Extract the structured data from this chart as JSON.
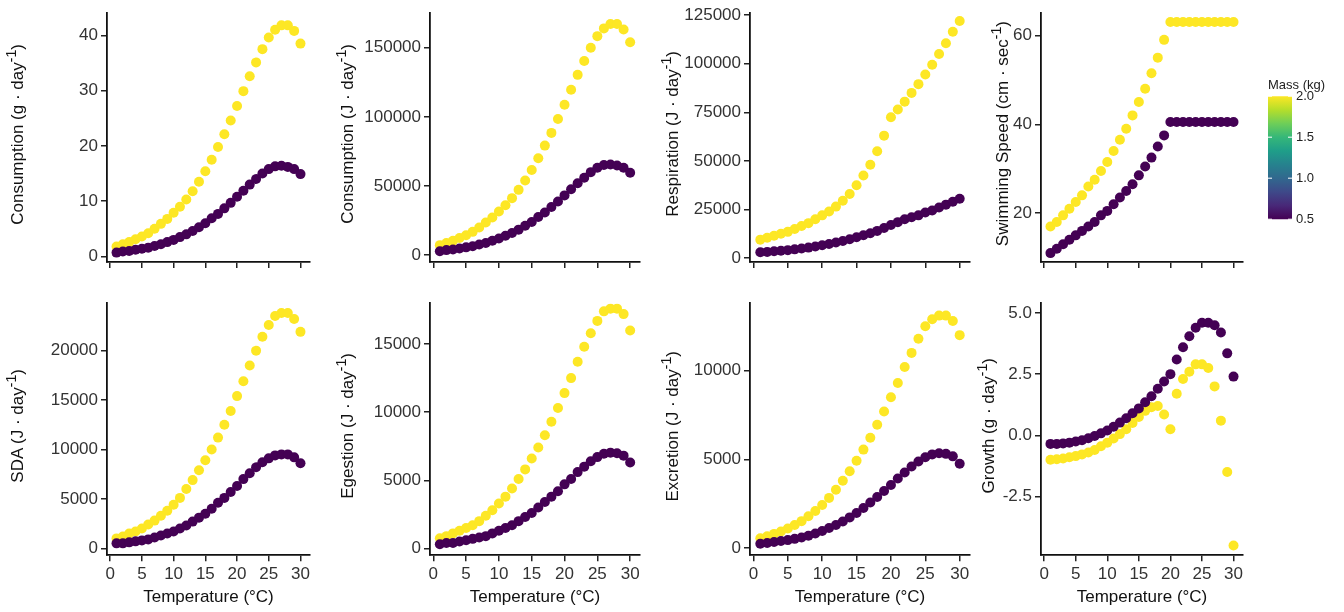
{
  "chart_data": [
    {
      "type": "scatter",
      "ylabel": "Consumption  (g · day$^{-1}$)",
      "marker": "circle",
      "grid": false,
      "tick_labels": "y",
      "xlim": [
        -0.5,
        31.5
      ],
      "xticks": [
        0,
        5,
        10,
        15,
        20,
        25,
        30
      ],
      "ylim": [
        -1,
        44
      ],
      "yticks": [
        0,
        10,
        20,
        30,
        40
      ],
      "x": [
        1,
        2,
        3,
        4,
        5,
        6,
        7,
        8,
        9,
        10,
        11,
        12,
        13,
        14,
        15,
        16,
        17,
        18,
        19,
        20,
        21,
        22,
        23,
        24,
        25,
        26,
        27,
        28,
        29,
        30
      ],
      "series": [
        {
          "color": "#440154",
          "values": [
            0.7,
            0.9,
            1.0,
            1.2,
            1.4,
            1.6,
            1.9,
            2.2,
            2.6,
            3.0,
            3.5,
            4.0,
            4.6,
            5.3,
            6.0,
            6.9,
            7.7,
            8.7,
            9.7,
            10.8,
            11.9,
            13.0,
            14.0,
            15.0,
            15.8,
            16.3,
            16.4,
            16.2,
            15.8,
            14.9
          ]
        },
        {
          "color": "#fde725",
          "values": [
            1.8,
            2.2,
            2.6,
            3.1,
            3.6,
            4.2,
            5.0,
            5.9,
            6.8,
            7.9,
            9.0,
            10.3,
            11.8,
            13.5,
            15.4,
            17.5,
            19.8,
            22.1,
            24.6,
            27.2,
            29.9,
            32.6,
            35.1,
            37.5,
            39.6,
            41.0,
            41.8,
            41.8,
            40.8,
            38.5
          ]
        }
      ]
    },
    {
      "type": "scatter",
      "ylabel": "Consumption  (J · day$^{-1}$)",
      "marker": "circle",
      "grid": false,
      "tick_labels": "y",
      "xlim": [
        -0.5,
        31.5
      ],
      "xticks": [
        0,
        5,
        10,
        15,
        20,
        25,
        30
      ],
      "ylim": [
        -5000,
        175000
      ],
      "yticks": [
        0,
        50000,
        100000,
        150000
      ],
      "x": [
        1,
        2,
        3,
        4,
        5,
        6,
        7,
        8,
        9,
        10,
        11,
        12,
        13,
        14,
        15,
        16,
        17,
        18,
        19,
        20,
        21,
        22,
        23,
        24,
        25,
        26,
        27,
        28,
        29,
        30
      ],
      "series": [
        {
          "color": "#440154",
          "values": [
            2800,
            3600,
            4000,
            4800,
            5600,
            6400,
            7600,
            8800,
            10400,
            12000,
            14000,
            16000,
            18400,
            21200,
            24000,
            27600,
            30800,
            34800,
            38800,
            43200,
            47600,
            52000,
            56000,
            60000,
            63200,
            65200,
            65600,
            64800,
            63200,
            59600
          ]
        },
        {
          "color": "#fde725",
          "values": [
            7200,
            8800,
            10400,
            12400,
            14400,
            16800,
            20000,
            23600,
            27200,
            31600,
            36000,
            41200,
            47200,
            54000,
            61600,
            70000,
            79200,
            88400,
            98400,
            108800,
            119600,
            130400,
            140400,
            150000,
            158400,
            164000,
            167200,
            167200,
            163200,
            154000
          ]
        }
      ]
    },
    {
      "type": "scatter",
      "ylabel": "Respiration  (J · day$^{-1}$)",
      "marker": "circle",
      "grid": false,
      "tick_labels": "y",
      "xlim": [
        -0.5,
        31.5
      ],
      "xticks": [
        0,
        5,
        10,
        15,
        20,
        25,
        30
      ],
      "ylim": [
        -2000,
        126000
      ],
      "yticks": [
        0,
        25000,
        50000,
        75000,
        100000,
        125000
      ],
      "x": [
        1,
        2,
        3,
        4,
        5,
        6,
        7,
        8,
        9,
        10,
        11,
        12,
        13,
        14,
        15,
        16,
        17,
        18,
        19,
        20,
        21,
        22,
        23,
        24,
        25,
        26,
        27,
        28,
        29,
        30
      ],
      "series": [
        {
          "color": "#440154",
          "values": [
            3000,
            3200,
            3500,
            3800,
            4100,
            4500,
            4900,
            5400,
            6000,
            6600,
            7300,
            8000,
            8800,
            9700,
            10700,
            11800,
            12800,
            14000,
            15500,
            17000,
            18500,
            20000,
            21000,
            22000,
            23500,
            24500,
            26000,
            27500,
            29000,
            30500
          ]
        },
        {
          "color": "#fde725",
          "values": [
            9500,
            10500,
            11500,
            12500,
            13500,
            15000,
            16500,
            18000,
            20000,
            22000,
            24000,
            26500,
            29500,
            33000,
            37500,
            42500,
            48000,
            55000,
            63000,
            72500,
            76500,
            80500,
            85000,
            89500,
            94500,
            99500,
            105000,
            110500,
            116500,
            122000
          ]
        }
      ]
    },
    {
      "type": "scatter",
      "ylabel": "Swimming Speed  (cm · sec$^{-1}$)",
      "clabel": "Mass (kg)",
      "clim": [
        0.5,
        2.0
      ],
      "cticks": [
        {
          "value": 0.5,
          "label": "0.5"
        },
        {
          "value": 1,
          "label": "1.0"
        },
        {
          "value": 1.5,
          "label": "1.5"
        },
        {
          "value": 2,
          "label": "2.0"
        }
      ],
      "marker": "circle",
      "grid": false,
      "tick_labels": "y",
      "xlim": [
        -0.5,
        31.5
      ],
      "xticks": [
        0,
        5,
        10,
        15,
        20,
        25,
        30
      ],
      "ylim": [
        9,
        65
      ],
      "yticks": [
        20,
        40,
        60
      ],
      "x": [
        1,
        2,
        3,
        4,
        5,
        6,
        7,
        8,
        9,
        10,
        11,
        12,
        13,
        14,
        15,
        16,
        17,
        18,
        19,
        20,
        21,
        22,
        23,
        24,
        25,
        26,
        27,
        28,
        29,
        30,
        1,
        2,
        3,
        4,
        5,
        6,
        7,
        8,
        9,
        10,
        11,
        12,
        13,
        14,
        15,
        16,
        17,
        18,
        19,
        20,
        21,
        22,
        23,
        24,
        25,
        26,
        27,
        28,
        29,
        30
      ],
      "values": [
        11,
        12,
        13,
        14,
        15,
        16,
        17,
        18,
        19.5,
        20.5,
        22,
        23.5,
        25,
        26.5,
        28.5,
        30.5,
        32.5,
        35,
        37.5,
        40.5,
        40.5,
        40.5,
        40.5,
        40.5,
        40.5,
        40.5,
        40.5,
        40.5,
        40.5,
        40.5,
        17,
        18,
        19.5,
        21,
        22.5,
        24,
        26,
        27.5,
        29.5,
        31.5,
        34,
        36.5,
        39,
        42,
        45,
        48,
        51.5,
        55,
        59,
        63,
        63,
        63,
        63,
        63,
        63,
        63,
        63,
        63,
        63,
        63
      ],
      "cvalues": [
        0.5,
        0.5,
        0.5,
        0.5,
        0.5,
        0.5,
        0.5,
        0.5,
        0.5,
        0.5,
        0.5,
        0.5,
        0.5,
        0.5,
        0.5,
        0.5,
        0.5,
        0.5,
        0.5,
        0.5,
        0.5,
        0.5,
        0.5,
        0.5,
        0.5,
        0.5,
        0.5,
        0.5,
        0.5,
        0.5,
        2.0,
        2.0,
        2.0,
        2.0,
        2.0,
        2.0,
        2.0,
        2.0,
        2.0,
        2.0,
        2.0,
        2.0,
        2.0,
        2.0,
        2.0,
        2.0,
        2.0,
        2.0,
        2.0,
        2.0,
        2.0,
        2.0,
        2.0,
        2.0,
        2.0,
        2.0,
        2.0,
        2.0,
        2.0,
        2.0
      ]
    },
    {
      "type": "scatter",
      "xlabel": "Temperature (°C)",
      "ylabel": "SDA  (J · day$^{-1}$)",
      "marker": "circle",
      "grid": false,
      "xlim": [
        -0.5,
        31.5
      ],
      "xticks": [
        0,
        5,
        10,
        15,
        20,
        25,
        30
      ],
      "ylim": [
        -700,
        24800
      ],
      "yticks": [
        0,
        5000,
        10000,
        15000,
        20000
      ],
      "x": [
        1,
        2,
        3,
        4,
        5,
        6,
        7,
        8,
        9,
        10,
        11,
        12,
        13,
        14,
        15,
        16,
        17,
        18,
        19,
        20,
        21,
        22,
        23,
        24,
        25,
        26,
        27,
        28,
        29,
        30
      ],
      "series": [
        {
          "color": "#440154",
          "values": [
            500,
            500,
            600,
            700,
            800,
            900,
            1100,
            1300,
            1500,
            1700,
            2000,
            2300,
            2700,
            3100,
            3500,
            4000,
            4600,
            5100,
            5700,
            6300,
            7000,
            7600,
            8200,
            8700,
            9100,
            9400,
            9500,
            9500,
            9200,
            8600
          ]
        },
        {
          "color": "#fde725",
          "values": [
            1000,
            1200,
            1500,
            1700,
            2000,
            2400,
            2800,
            3300,
            3800,
            4400,
            5100,
            6000,
            6900,
            7900,
            8900,
            10000,
            11200,
            12500,
            13900,
            15400,
            16900,
            18500,
            20000,
            21400,
            22600,
            23500,
            23800,
            23800,
            23200,
            21900
          ]
        }
      ]
    },
    {
      "type": "scatter",
      "xlabel": "Temperature (°C)",
      "ylabel": "Egestion  (J · day$^{-1}$)",
      "marker": "circle",
      "grid": false,
      "xlim": [
        -0.5,
        31.5
      ],
      "xticks": [
        0,
        5,
        10,
        15,
        20,
        25,
        30
      ],
      "ylim": [
        -500,
        18000
      ],
      "yticks": [
        0,
        5000,
        10000,
        15000
      ],
      "x": [
        1,
        2,
        3,
        4,
        5,
        6,
        7,
        8,
        9,
        10,
        11,
        12,
        13,
        14,
        15,
        16,
        17,
        18,
        19,
        20,
        21,
        22,
        23,
        24,
        25,
        26,
        27,
        28,
        29,
        30
      ],
      "series": [
        {
          "color": "#440154",
          "values": [
            300,
            400,
            400,
            500,
            600,
            700,
            800,
            900,
            1100,
            1300,
            1500,
            1700,
            2000,
            2300,
            2600,
            3000,
            3400,
            3800,
            4200,
            4700,
            5100,
            5600,
            6000,
            6400,
            6700,
            6950,
            7030,
            6990,
            6810,
            6300
          ]
        },
        {
          "color": "#fde725",
          "values": [
            750,
            900,
            1100,
            1300,
            1500,
            1700,
            2000,
            2400,
            2800,
            3300,
            3800,
            4400,
            5100,
            5800,
            6600,
            7400,
            8300,
            9300,
            10300,
            11400,
            12500,
            13700,
            14800,
            15800,
            16700,
            17400,
            17600,
            17600,
            17200,
            16000
          ]
        }
      ]
    },
    {
      "type": "scatter",
      "xlabel": "Temperature (°C)",
      "ylabel": "Excretion  (J · day$^{-1}$)",
      "marker": "circle",
      "grid": false,
      "xlim": [
        -0.5,
        31.5
      ],
      "xticks": [
        0,
        5,
        10,
        15,
        20,
        25,
        30
      ],
      "ylim": [
        -400,
        13800
      ],
      "yticks": [
        0,
        5000,
        10000
      ],
      "x": [
        1,
        2,
        3,
        4,
        5,
        6,
        7,
        8,
        9,
        10,
        11,
        12,
        13,
        14,
        15,
        16,
        17,
        18,
        19,
        20,
        21,
        22,
        23,
        24,
        25,
        26,
        27,
        28,
        29,
        30
      ],
      "series": [
        {
          "color": "#440154",
          "values": [
            250,
            290,
            340,
            400,
            450,
            520,
            600,
            700,
            820,
            960,
            1130,
            1300,
            1500,
            1730,
            1980,
            2260,
            2570,
            2880,
            3220,
            3560,
            3920,
            4260,
            4600,
            4880,
            5120,
            5280,
            5340,
            5310,
            5170,
            4750
          ]
        },
        {
          "color": "#fde725",
          "values": [
            560,
            670,
            800,
            940,
            1100,
            1300,
            1520,
            1790,
            2090,
            2430,
            2830,
            3290,
            3800,
            4330,
            4920,
            5550,
            6220,
            6950,
            7700,
            8500,
            9300,
            10200,
            11000,
            11800,
            12500,
            12900,
            13100,
            13100,
            12800,
            12000
          ]
        }
      ]
    },
    {
      "type": "scatter",
      "xlabel": "Temperature (°C)",
      "ylabel": "Growth  (g · day$^{-1}$)",
      "marker": "circle",
      "grid": false,
      "xlim": [
        -0.5,
        31.5
      ],
      "xticks": [
        0,
        5,
        10,
        15,
        20,
        25,
        30
      ],
      "ylim": [
        -4.9,
        5.4
      ],
      "yticks": [
        {
          "value": -2.5,
          "label": "-2.5"
        },
        {
          "value": 0,
          "label": "0.0"
        },
        {
          "value": 2.5,
          "label": "2.5"
        },
        {
          "value": 5,
          "label": "5.0"
        }
      ],
      "x": [
        1,
        2,
        3,
        4,
        5,
        6,
        7,
        8,
        9,
        10,
        11,
        12,
        13,
        14,
        15,
        16,
        17,
        18,
        19,
        20,
        21,
        22,
        23,
        24,
        25,
        26,
        27,
        28,
        29,
        30
      ],
      "series": [
        {
          "color": "#440154",
          "values": [
            -0.35,
            -0.35,
            -0.33,
            -0.3,
            -0.25,
            -0.2,
            -0.12,
            -0.03,
            0.08,
            0.2,
            0.35,
            0.52,
            0.7,
            0.9,
            1.1,
            1.35,
            1.6,
            1.9,
            2.2,
            2.5,
            3.1,
            3.6,
            4.05,
            4.4,
            4.6,
            4.6,
            4.5,
            4.2,
            3.35,
            2.4
          ]
        },
        {
          "color": "#fde725",
          "values": [
            -1.0,
            -0.98,
            -0.95,
            -0.9,
            -0.85,
            -0.78,
            -0.7,
            -0.6,
            -0.45,
            -0.3,
            -0.13,
            0.05,
            0.25,
            0.5,
            0.75,
            1.0,
            1.15,
            1.2,
            0.85,
            0.25,
            1.7,
            2.3,
            2.6,
            2.9,
            2.9,
            2.75,
            2.0,
            0.6,
            -1.5,
            -4.5
          ]
        }
      ]
    }
  ]
}
